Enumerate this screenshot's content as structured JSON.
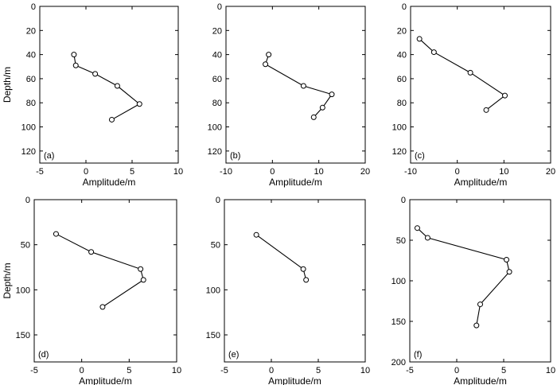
{
  "chart_data": [
    {
      "type": "line",
      "panel_label": "(a)",
      "xlabel": "Amplitude/m",
      "ylabel": "Depth/m",
      "xlim": [
        -5,
        10
      ],
      "ylim": [
        0,
        130
      ],
      "y_inverted": true,
      "xticks": [
        -5,
        0,
        5,
        10
      ],
      "yticks": [
        0,
        20,
        40,
        60,
        80,
        100,
        120
      ],
      "grid": false,
      "panel_label_position": "bottom-left",
      "series": [
        {
          "x": [
            -1.3,
            -1.1,
            1.0,
            3.4,
            5.8,
            2.8
          ],
          "y": [
            40,
            49,
            56,
            66,
            81,
            94
          ]
        }
      ]
    },
    {
      "type": "line",
      "panel_label": "(b)",
      "xlabel": "Amplitude/m",
      "ylabel": "",
      "xlim": [
        -10,
        20
      ],
      "ylim": [
        0,
        130
      ],
      "y_inverted": true,
      "xticks": [
        -10,
        0,
        10,
        20
      ],
      "yticks": [
        0,
        20,
        40,
        60,
        80,
        100,
        120
      ],
      "grid": false,
      "panel_label_position": "bottom-left",
      "series": [
        {
          "x": [
            -0.8,
            -1.5,
            6.7,
            12.8,
            10.8,
            8.9
          ],
          "y": [
            40,
            48,
            66,
            73,
            84,
            92
          ]
        }
      ]
    },
    {
      "type": "line",
      "panel_label": "(c)",
      "xlabel": "Amplitude/m",
      "ylabel": "",
      "xlim": [
        -10,
        20
      ],
      "ylim": [
        0,
        130
      ],
      "y_inverted": true,
      "xticks": [
        -10,
        0,
        10,
        20
      ],
      "yticks": [
        0,
        20,
        40,
        60,
        80,
        100,
        120
      ],
      "grid": false,
      "panel_label_position": "bottom-left",
      "series": [
        {
          "x": [
            -8.1,
            -5.0,
            2.8,
            10.2,
            6.2
          ],
          "y": [
            27,
            38,
            55,
            74,
            86
          ]
        }
      ]
    },
    {
      "type": "line",
      "panel_label": "(d)",
      "xlabel": "Amplitude/m",
      "ylabel": "Depth/m",
      "xlim": [
        -5,
        10
      ],
      "ylim": [
        0,
        180
      ],
      "y_inverted": true,
      "xticks": [
        -5,
        0,
        5,
        10
      ],
      "yticks": [
        0,
        50,
        100,
        150
      ],
      "grid": false,
      "panel_label_position": "bottom-left",
      "series": [
        {
          "x": [
            -2.7,
            1.0,
            6.2,
            6.5,
            2.2
          ],
          "y": [
            38,
            58,
            77,
            89,
            119
          ]
        }
      ]
    },
    {
      "type": "line",
      "panel_label": "(e)",
      "xlabel": "Amplitude/m",
      "ylabel": "",
      "xlim": [
        -5,
        10
      ],
      "ylim": [
        0,
        180
      ],
      "y_inverted": true,
      "xticks": [
        -5,
        0,
        5,
        10
      ],
      "yticks": [
        0,
        50,
        100,
        150
      ],
      "grid": false,
      "panel_label_position": "bottom-left",
      "series": [
        {
          "x": [
            -1.6,
            3.4,
            3.7
          ],
          "y": [
            39,
            77,
            89
          ]
        }
      ]
    },
    {
      "type": "line",
      "panel_label": "(f)",
      "xlabel": "Amplitude/m",
      "ylabel": "",
      "xlim": [
        -5,
        10
      ],
      "ylim": [
        0,
        200
      ],
      "y_inverted": true,
      "xticks": [
        -5,
        0,
        5,
        10
      ],
      "yticks": [
        0,
        50,
        100,
        150,
        200
      ],
      "grid": false,
      "panel_label_position": "bottom-left",
      "series": [
        {
          "x": [
            -4.2,
            -3.1,
            5.3,
            5.6,
            2.5,
            2.1
          ],
          "y": [
            35,
            47,
            74,
            89,
            129,
            155
          ]
        }
      ]
    }
  ]
}
